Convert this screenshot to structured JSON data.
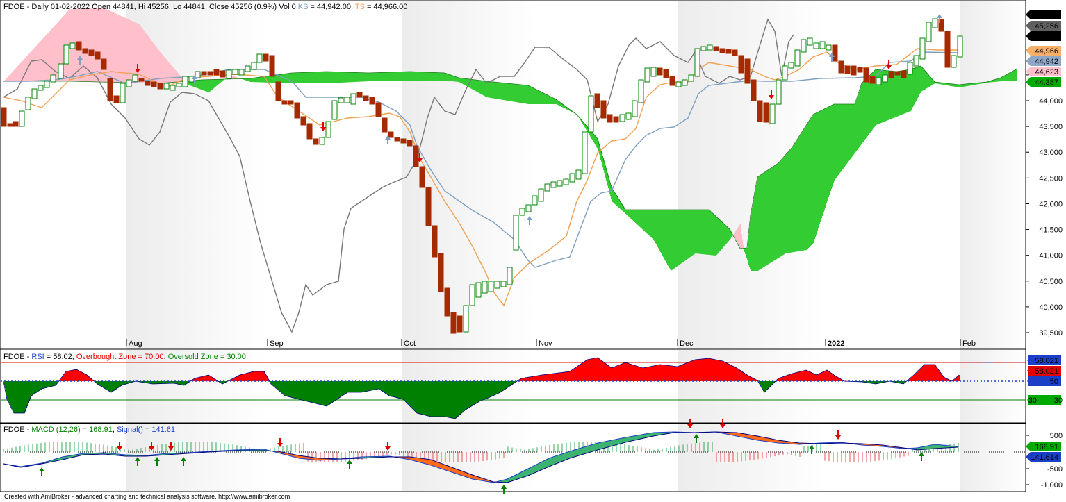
{
  "price_panel": {
    "symbol": "FDOE",
    "title_main": "FDOE - Daily 01-02-2022 Open 44841, Hi 45256, Lo 44841, Close 45256 (0.9%) Vol 0",
    "ks_label": "KS",
    "ks_value": " = 44,942.00, ",
    "ts_label": "TS",
    "ts_value": " = 44,966.00",
    "colors": {
      "ks": "#7f9fc0",
      "ts": "#f0a050",
      "chikou": "#777777",
      "cloud_up": "#33cc33",
      "cloud_down": "#ffc0cb",
      "candle_up": "#008000",
      "candle_down": "#a52a00"
    },
    "y_ticks": [
      "44,000",
      "43,500",
      "43,000",
      "42,500",
      "42,000",
      "41,500",
      "41,000",
      "40,500",
      "40,000",
      "39,500"
    ],
    "badges": [
      {
        "text": "45,256",
        "bg": "#000000",
        "fg": "#ffffff"
      },
      {
        "text": "45,256",
        "bg": "#606060",
        "fg": "#ffffff"
      },
      {
        "text": "45,256",
        "bg": "#000000",
        "fg": "#ffffff"
      },
      {
        "text": "44,966",
        "bg": "#f5b06a",
        "fg": "#000000"
      },
      {
        "text": "44,942",
        "bg": "#8fa8c8",
        "fg": "#000000"
      },
      {
        "text": "44,623",
        "bg": "#ffc0cb",
        "fg": "#000000"
      },
      {
        "text": "44,387",
        "bg": "#00aa00",
        "fg": "#ffffff"
      }
    ],
    "months": [
      "Aug",
      "Sep",
      "Oct",
      "Nov",
      "Dec",
      "2022",
      "Feb"
    ]
  },
  "rsi_panel": {
    "title_prefix": "FDOE - ",
    "rsi_label": "RSI",
    "rsi_value": " = 58.02, ",
    "ob_label": "Overbought Zone = 70.00",
    "sep": ", ",
    "os_label": "Oversold Zone = 30.00",
    "badges": [
      {
        "text": "58.021",
        "bg": "#1c3fc8",
        "fg": "#ffffff"
      },
      {
        "text": "58.021",
        "bg": "#e00000",
        "fg": "#000000"
      },
      {
        "text": "50",
        "bg": "#1c3fc8",
        "fg": "#ffffff"
      },
      {
        "text": "30",
        "bg": "#00aa00",
        "fg": "#000000"
      }
    ],
    "tick_30": "30"
  },
  "macd_panel": {
    "title_prefix": "FDOE - ",
    "macd_label": "MACD (12,26) = 168.91",
    "sep": ", ",
    "signal_label": "Signal() = 141.61",
    "y_ticks": [
      "500",
      "-500",
      "-1,000"
    ],
    "badges": [
      {
        "text": "168.91",
        "bg": "#00aa00",
        "fg": "#000000"
      },
      {
        "text": "141.614",
        "bg": "#1c3fc8",
        "fg": "#ffffff"
      }
    ]
  },
  "footer": "Created with AmiBroker - advanced charting and technical analysis software. http://www.amibroker.com",
  "chart_data": {
    "type": "candlestick",
    "title": "FDOE - Daily 01-02-2022 Open 44841, Hi 45256, Lo 44841, Close 45256 (0.9%) Vol 0",
    "ylim": [
      39500,
      45256
    ],
    "last_bar": {
      "open": 44841,
      "high": 45256,
      "low": 44841,
      "close": 45256,
      "change_pct": 0.9
    },
    "ichimoku": {
      "KS": 44942.0,
      "TS": 44966.0,
      "span_a_last": 44387,
      "span_b_last": 44623
    },
    "key_swings": [
      {
        "date": "mid-Jul",
        "price": 43500
      },
      {
        "date": "early-Aug",
        "price": 44600
      },
      {
        "date": "late-Aug",
        "price": 44350
      },
      {
        "date": "mid-Sep",
        "price": 43200
      },
      {
        "date": "late-Sep",
        "price": 44100
      },
      {
        "date": "mid-Oct",
        "price": 39500
      },
      {
        "date": "mid-Nov",
        "price": 44300
      },
      {
        "date": "late-Nov",
        "price": 43600
      },
      {
        "date": "mid-Dec",
        "price": 44900
      },
      {
        "date": "late-Dec",
        "price": 43600
      },
      {
        "date": "early-Jan",
        "price": 44900
      },
      {
        "date": "late-Jan",
        "price": 45256
      }
    ],
    "rsi": {
      "value": 58.02,
      "overbought": 70.0,
      "oversold": 30.0
    },
    "macd": {
      "params": "12,26",
      "macd": 168.91,
      "signal": 141.61,
      "ylim": [
        -1000,
        700
      ]
    }
  }
}
